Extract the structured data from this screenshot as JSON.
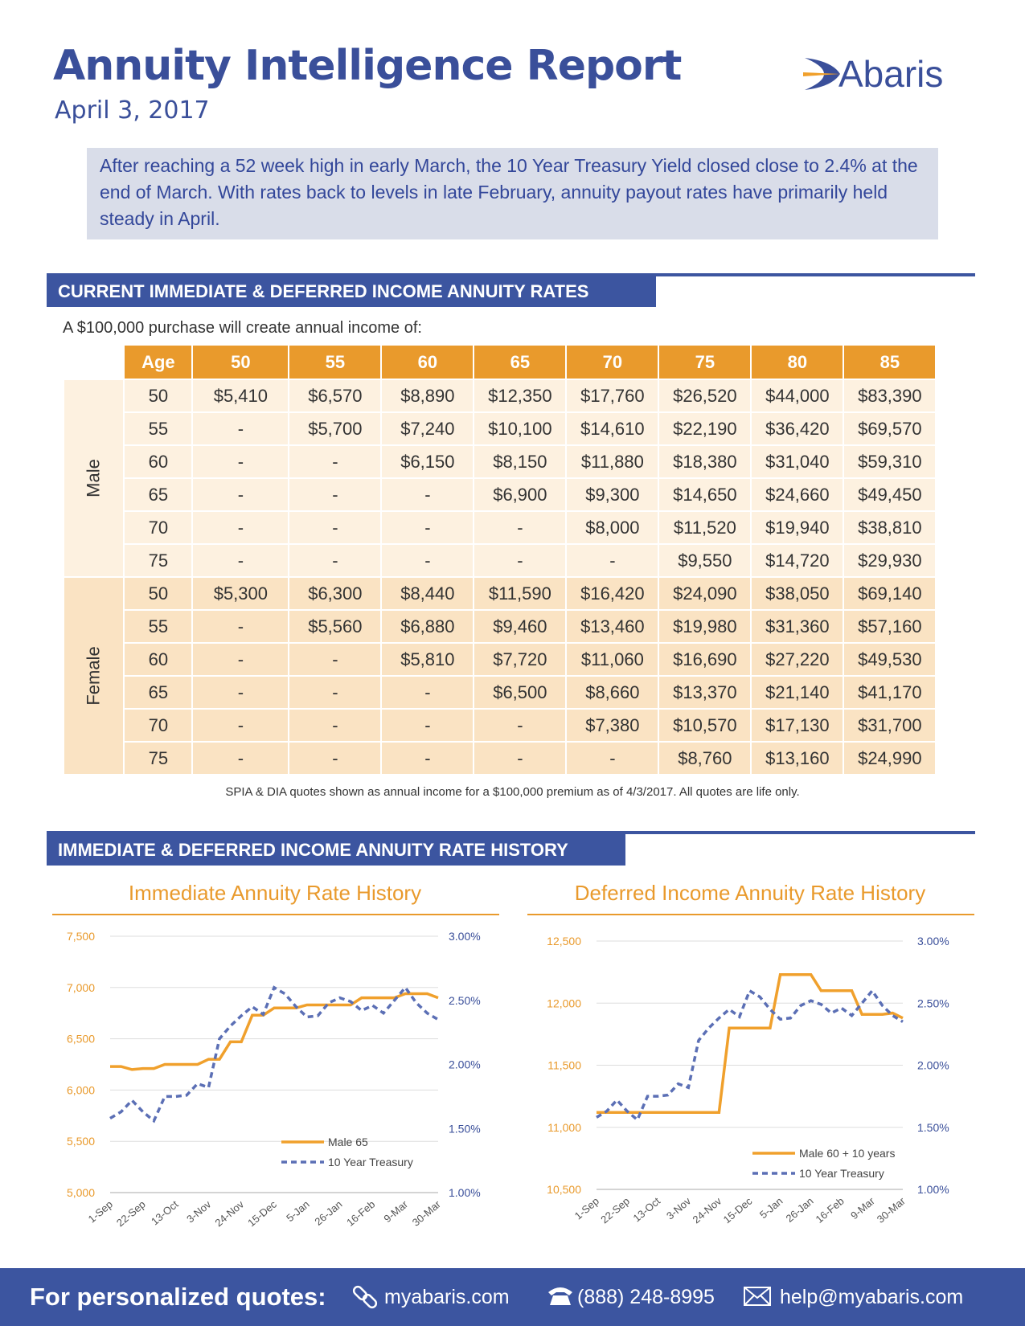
{
  "header": {
    "title": "Annuity Intelligence Report",
    "date": "April 3, 2017",
    "logo": "Abaris"
  },
  "summary": "After reaching a 52 week high in early March, the 10 Year Treasury Yield closed close to 2.4% at the end of March. With rates back to levels in late February, annuity payout rates have primarily held steady in April.",
  "sections": [
    "CURRENT IMMEDIATE & DEFERRED INCOME ANNUITY RATES",
    "IMMEDIATE & DEFERRED INCOME ANNUITY RATE HISTORY"
  ],
  "table": {
    "caption": "A $100,000 purchase will create annual income of:",
    "header": [
      "Age",
      "50",
      "55",
      "60",
      "65",
      "70",
      "75",
      "80",
      "85"
    ],
    "groups": [
      {
        "name": "Male",
        "rows": [
          [
            "50",
            "$5,410",
            "$6,570",
            "$8,890",
            "$12,350",
            "$17,760",
            "$26,520",
            "$44,000",
            "$83,390"
          ],
          [
            "55",
            "-",
            "$5,700",
            "$7,240",
            "$10,100",
            "$14,610",
            "$22,190",
            "$36,420",
            "$69,570"
          ],
          [
            "60",
            "-",
            "-",
            "$6,150",
            "$8,150",
            "$11,880",
            "$18,380",
            "$31,040",
            "$59,310"
          ],
          [
            "65",
            "-",
            "-",
            "-",
            "$6,900",
            "$9,300",
            "$14,650",
            "$24,660",
            "$49,450"
          ],
          [
            "70",
            "-",
            "-",
            "-",
            "-",
            "$8,000",
            "$11,520",
            "$19,940",
            "$38,810"
          ],
          [
            "75",
            "-",
            "-",
            "-",
            "-",
            "-",
            "$9,550",
            "$14,720",
            "$29,930"
          ]
        ]
      },
      {
        "name": "Female",
        "rows": [
          [
            "50",
            "$5,300",
            "$6,300",
            "$8,440",
            "$11,590",
            "$16,420",
            "$24,090",
            "$38,050",
            "$69,140"
          ],
          [
            "55",
            "-",
            "$5,560",
            "$6,880",
            "$9,460",
            "$13,460",
            "$19,980",
            "$31,360",
            "$57,160"
          ],
          [
            "60",
            "-",
            "-",
            "$5,810",
            "$7,720",
            "$11,060",
            "$16,690",
            "$27,220",
            "$49,530"
          ],
          [
            "65",
            "-",
            "-",
            "-",
            "$6,500",
            "$8,660",
            "$13,370",
            "$21,140",
            "$41,170"
          ],
          [
            "70",
            "-",
            "-",
            "-",
            "-",
            "$7,380",
            "$10,570",
            "$17,130",
            "$31,700"
          ],
          [
            "75",
            "-",
            "-",
            "-",
            "-",
            "-",
            "$8,760",
            "$13,160",
            "$24,990"
          ]
        ]
      }
    ]
  },
  "note": "SPIA & DIA quotes shown as annual income for a $100,000 premium as of 4/3/2017. All quotes are life only.",
  "chart_data": [
    {
      "type": "line",
      "title": "Immediate Annuity Rate History",
      "categories": [
        "1-Sep",
        null,
        null,
        "22-Sep",
        null,
        null,
        "13-Oct",
        null,
        null,
        "3-Nov",
        null,
        null,
        "24-Nov",
        null,
        null,
        "15-Dec",
        null,
        null,
        "5-Jan",
        null,
        null,
        "26-Jan",
        null,
        null,
        "16-Feb",
        null,
        null,
        "9-Mar",
        null,
        null,
        "30-Mar"
      ],
      "series": [
        {
          "name": "Male 65",
          "color": "#f0a02c",
          "style": "solid",
          "axis": "y",
          "values": [
            6230,
            6230,
            6200,
            6210,
            6210,
            6250,
            6250,
            6250,
            6250,
            6300,
            6300,
            6470,
            6470,
            6730,
            6730,
            6800,
            6800,
            6800,
            6830,
            6830,
            6830,
            6830,
            6830,
            6900,
            6900,
            6900,
            6900,
            6940,
            6940,
            6940,
            6900
          ]
        },
        {
          "name": "10 Year Treasury",
          "color": "#5b6fb5",
          "style": "dashed",
          "axis": "y2",
          "values": [
            1.58,
            1.63,
            1.72,
            1.63,
            1.56,
            1.75,
            1.75,
            1.76,
            1.85,
            1.82,
            2.2,
            2.3,
            2.38,
            2.45,
            2.39,
            2.6,
            2.55,
            2.45,
            2.37,
            2.38,
            2.48,
            2.52,
            2.49,
            2.42,
            2.46,
            2.4,
            2.5,
            2.6,
            2.48,
            2.4,
            2.35
          ]
        }
      ],
      "ylim": [
        5000,
        7500
      ],
      "yticks": [
        {
          "value": 5000,
          "label": "5,000"
        },
        {
          "value": 5500,
          "label": "5,500"
        },
        {
          "value": 6000,
          "label": "6,000"
        },
        {
          "value": 6500,
          "label": "6,500"
        },
        {
          "value": 7000,
          "label": "7,000"
        },
        {
          "value": 7500,
          "label": "7,500"
        }
      ],
      "y2lim": [
        1,
        3
      ],
      "y2ticks": [
        {
          "value": 1,
          "label": "1.00%"
        },
        {
          "value": 1.5,
          "label": "1.50%"
        },
        {
          "value": 2,
          "label": "2.00%"
        },
        {
          "value": 2.5,
          "label": "2.50%"
        },
        {
          "value": 3,
          "label": "3.00%"
        }
      ],
      "grid": true,
      "legend": "bottom-right"
    },
    {
      "type": "line",
      "title": "Deferred Income Annuity Rate History",
      "categories": [
        "1-Sep",
        null,
        null,
        "22-Sep",
        null,
        null,
        "13-Oct",
        null,
        null,
        "3-Nov",
        null,
        null,
        "24-Nov",
        null,
        null,
        "15-Dec",
        null,
        null,
        "5-Jan",
        null,
        null,
        "26-Jan",
        null,
        null,
        "16-Feb",
        null,
        null,
        "9-Mar",
        null,
        null,
        "30-Mar"
      ],
      "series": [
        {
          "name": "Male 60 + 10 years",
          "color": "#f0a02c",
          "style": "solid",
          "axis": "y",
          "values": [
            11120,
            11120,
            11120,
            11120,
            11120,
            11120,
            11120,
            11120,
            11120,
            11120,
            11120,
            11120,
            11120,
            11800,
            11800,
            11800,
            11800,
            11800,
            12230,
            12230,
            12230,
            12230,
            12100,
            12100,
            12100,
            12100,
            11910,
            11910,
            11910,
            11920,
            11880
          ]
        },
        {
          "name": "10 Year Treasury",
          "color": "#5b6fb5",
          "style": "dashed",
          "axis": "y2",
          "values": [
            1.58,
            1.63,
            1.72,
            1.63,
            1.56,
            1.75,
            1.75,
            1.76,
            1.85,
            1.82,
            2.2,
            2.3,
            2.38,
            2.45,
            2.39,
            2.6,
            2.55,
            2.45,
            2.37,
            2.38,
            2.48,
            2.52,
            2.49,
            2.42,
            2.46,
            2.4,
            2.5,
            2.6,
            2.48,
            2.4,
            2.35
          ]
        }
      ],
      "ylim": [
        10500,
        12500
      ],
      "yticks": [
        {
          "value": 10500,
          "label": "10,500"
        },
        {
          "value": 11000,
          "label": "11,000"
        },
        {
          "value": 11500,
          "label": "11,500"
        },
        {
          "value": 12000,
          "label": "12,000"
        },
        {
          "value": 12500,
          "label": "12,500"
        }
      ],
      "y2lim": [
        1,
        3
      ],
      "y2ticks": [
        {
          "value": 1,
          "label": "1.00%"
        },
        {
          "value": 1.5,
          "label": "1.50%"
        },
        {
          "value": 2,
          "label": "2.00%"
        },
        {
          "value": 2.5,
          "label": "2.50%"
        },
        {
          "value": 3,
          "label": "3.00%"
        }
      ],
      "grid": true,
      "legend": "bottom-right"
    }
  ],
  "footer": {
    "lead": "For personalized quotes:",
    "website": "myabaris.com",
    "phone": "(888) 248-8995",
    "email": "help@myabaris.com"
  }
}
